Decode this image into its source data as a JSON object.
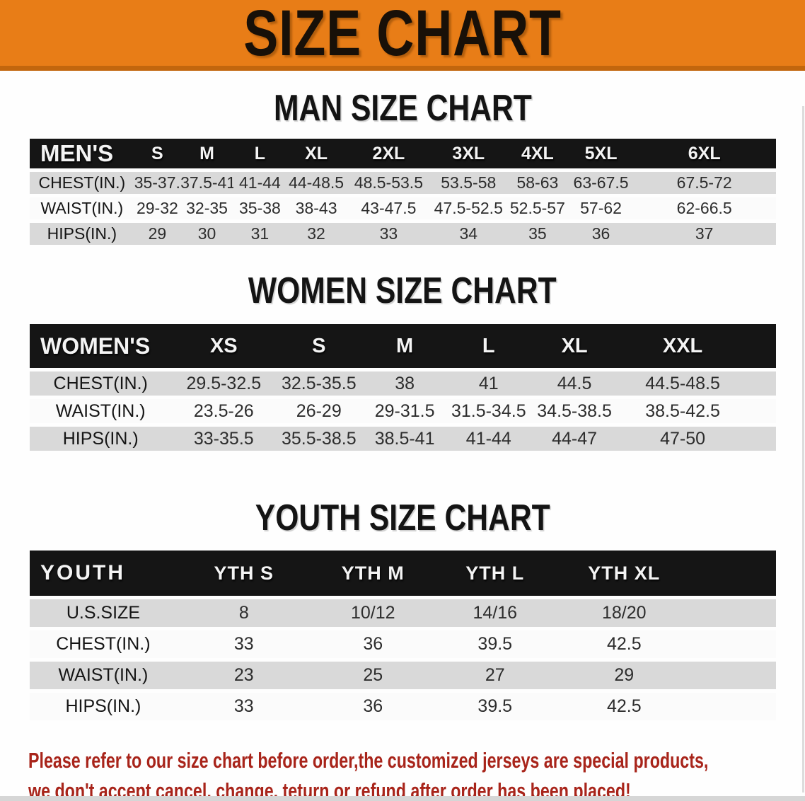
{
  "banner": {
    "title": "SIZE CHART",
    "bg_color": "#e87d17",
    "border_color": "#c2660d"
  },
  "sections": [
    {
      "id": "men",
      "title": "MAN SIZE CHART",
      "group_label": "MEN'S",
      "columns": [
        "S",
        "M",
        "L",
        "XL",
        "2XL",
        "3XL",
        "4XL",
        "5XL",
        "6XL"
      ],
      "rows": [
        {
          "label": "CHEST(IN.)",
          "values": [
            "35-37.5",
            "37.5-41",
            "41-44",
            "44-48.5",
            "48.5-53.5",
            "53.5-58",
            "58-63",
            "63-67.5",
            "67.5-72"
          ]
        },
        {
          "label": "WAIST(IN.)",
          "values": [
            "29-32",
            "32-35",
            "35-38",
            "38-43",
            "43-47.5",
            "47.5-52.5",
            "52.5-57",
            "57-62",
            "62-66.5"
          ]
        },
        {
          "label": "HIPS(IN.)",
          "values": [
            "29",
            "30",
            "31",
            "32",
            "33",
            "34",
            "35",
            "36",
            "37"
          ]
        }
      ]
    },
    {
      "id": "women",
      "title": "WOMEN SIZE CHART",
      "group_label": "WOMEN'S",
      "columns": [
        "XS",
        "S",
        "M",
        "L",
        "XL",
        "XXL"
      ],
      "rows": [
        {
          "label": "CHEST(IN.)",
          "values": [
            "29.5-32.5",
            "32.5-35.5",
            "38",
            "41",
            "44.5",
            "44.5-48.5"
          ]
        },
        {
          "label": "WAIST(IN.)",
          "values": [
            "23.5-26",
            "26-29",
            "29-31.5",
            "31.5-34.5",
            "34.5-38.5",
            "38.5-42.5"
          ]
        },
        {
          "label": "HIPS(IN.)",
          "values": [
            "33-35.5",
            "35.5-38.5",
            "38.5-41",
            "41-44",
            "44-47",
            "47-50"
          ]
        }
      ]
    },
    {
      "id": "youth",
      "title": "YOUTH SIZE CHART",
      "group_label": "YOUTH",
      "columns": [
        "YTH S",
        "YTH M",
        "YTH L",
        "YTH XL"
      ],
      "rows": [
        {
          "label": "U.S.SIZE",
          "values": [
            "8",
            "10/12",
            "14/16",
            "18/20"
          ]
        },
        {
          "label": "CHEST(IN.)",
          "values": [
            "33",
            "36",
            "39.5",
            "42.5"
          ]
        },
        {
          "label": "WAIST(IN.)",
          "values": [
            "23",
            "25",
            "27",
            "29"
          ]
        },
        {
          "label": "HIPS(IN.)",
          "values": [
            "33",
            "36",
            "39.5",
            "42.5"
          ]
        }
      ]
    }
  ],
  "disclaimer": {
    "line1": "Please refer to our size chart before order,the customized jerseys are special products,",
    "line2": "we don't accept cancel, change, teturn or refund after order has been placed!",
    "color": "#a8241a"
  },
  "row_colors": {
    "striped": "#d9d9d9",
    "plain": "#fbfbfb",
    "header_bar": "#151515"
  }
}
